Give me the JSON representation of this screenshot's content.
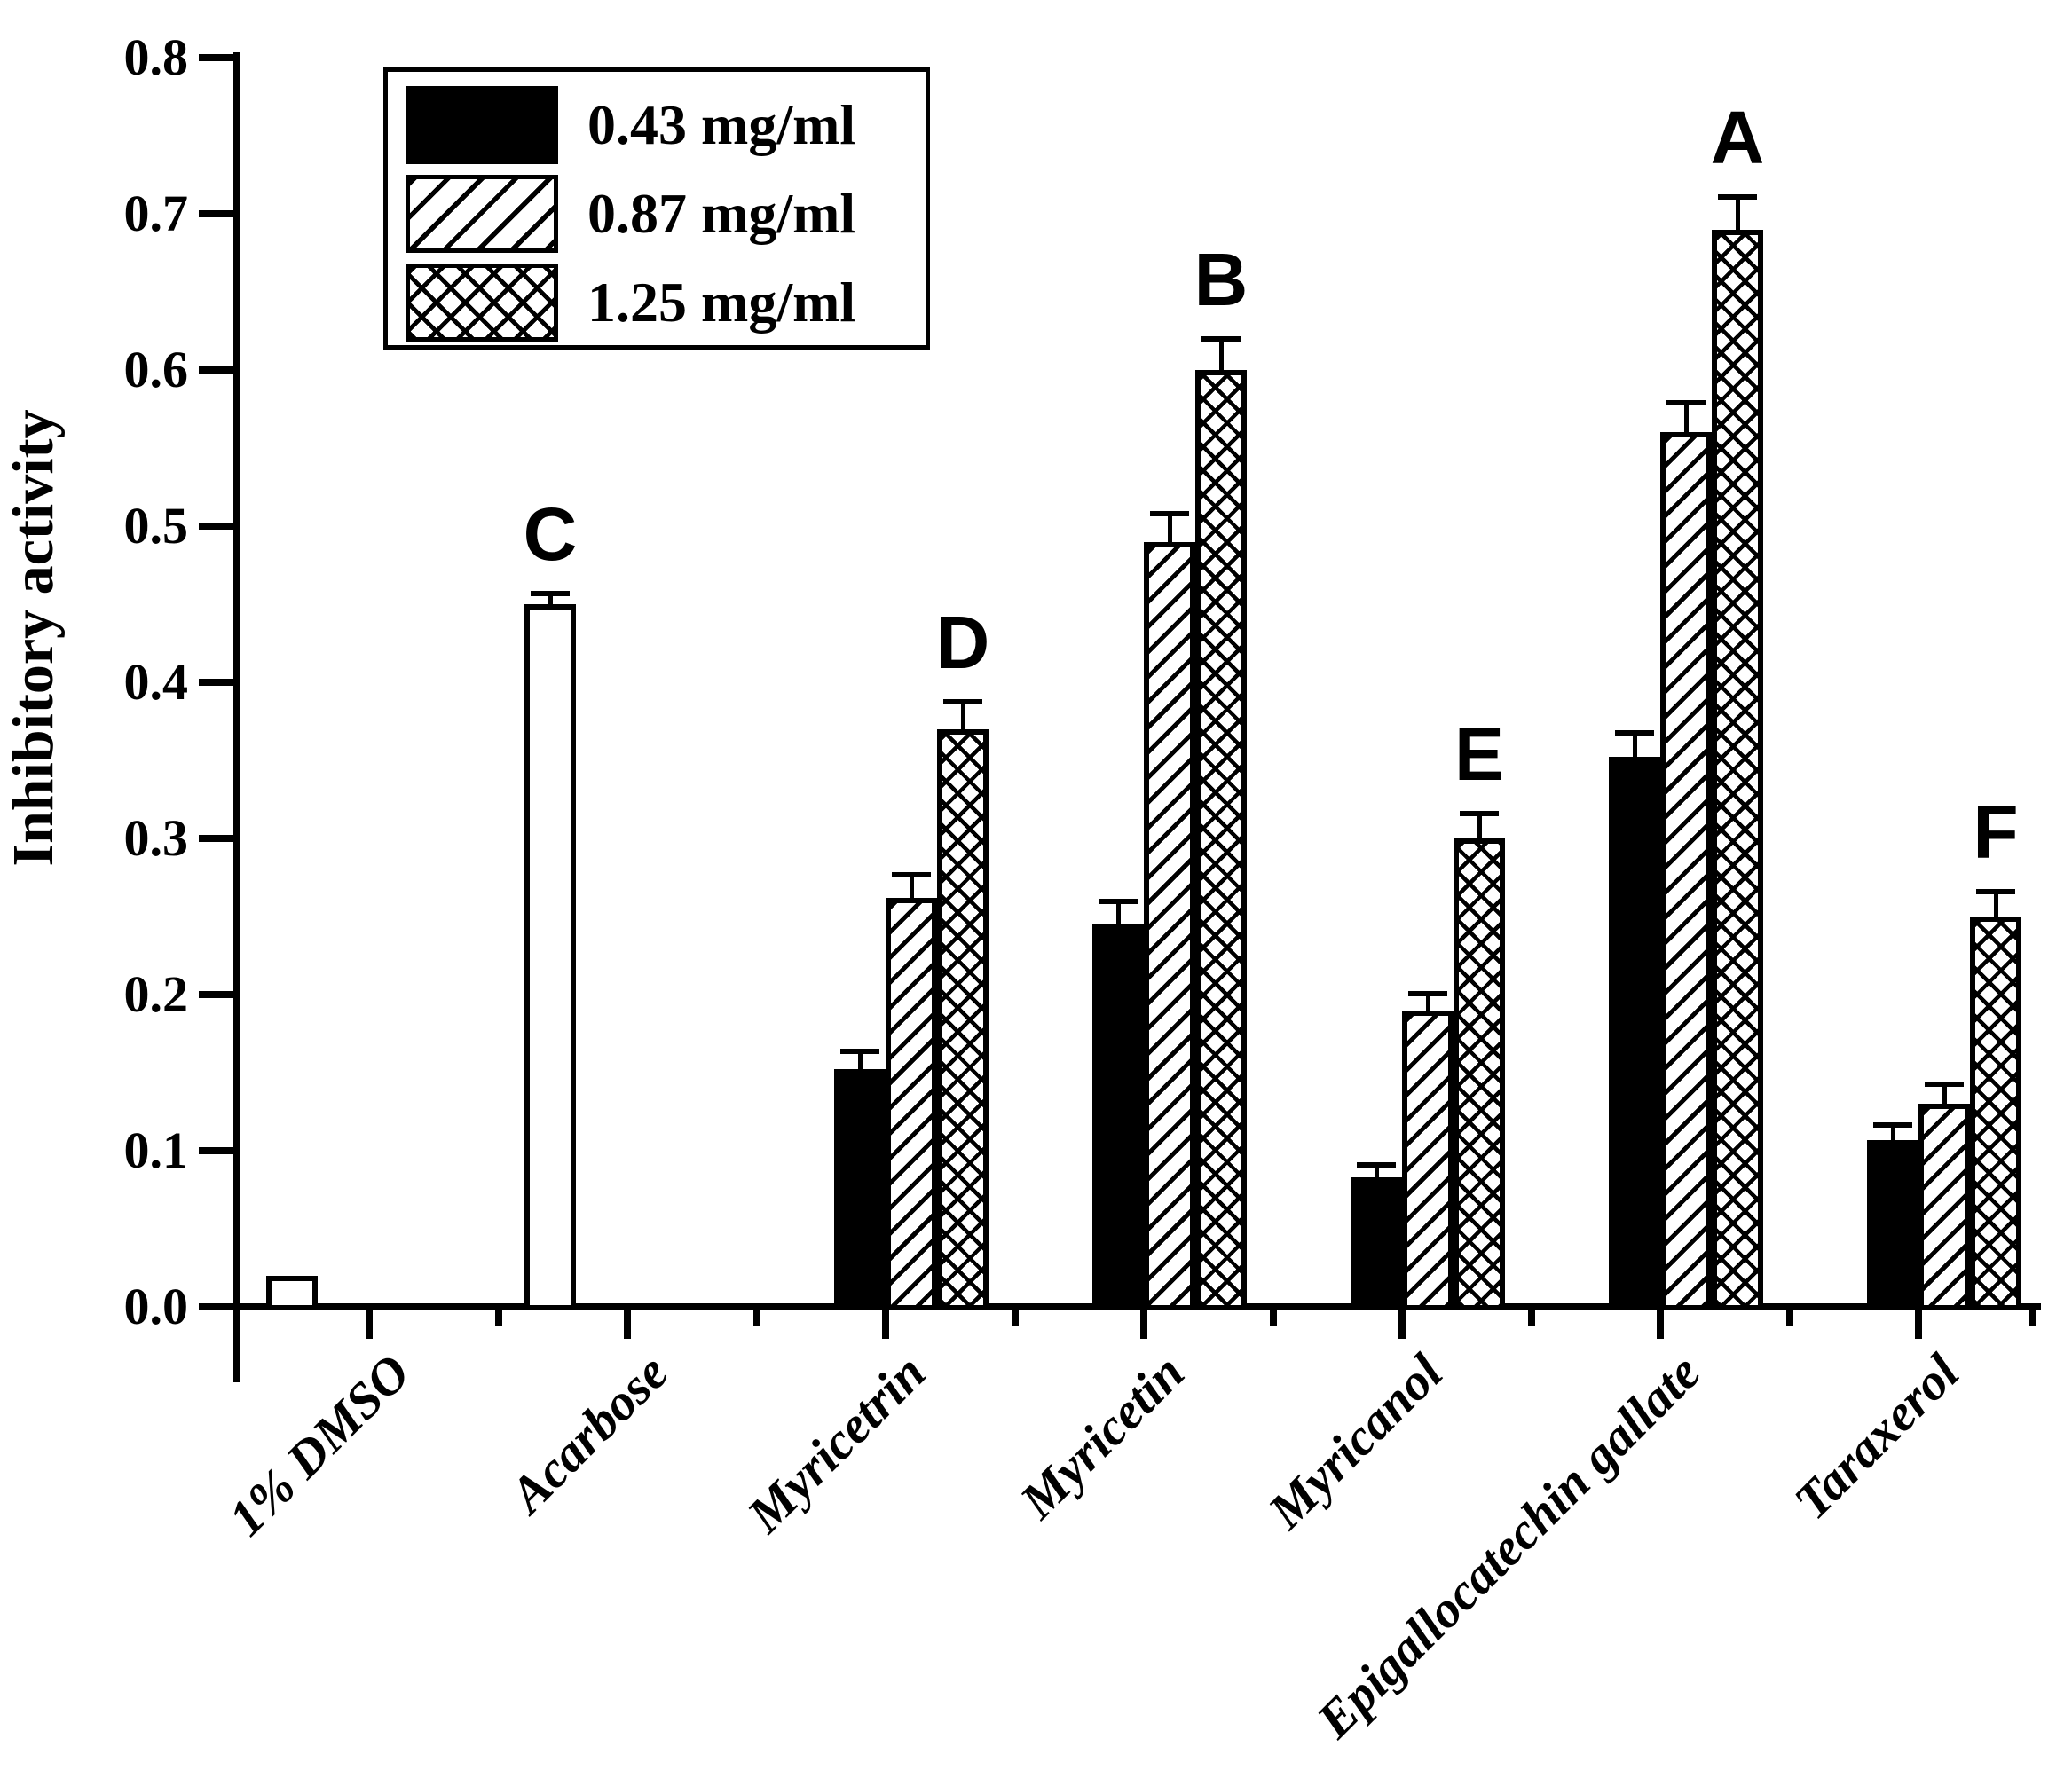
{
  "figure": {
    "background": "#ffffff",
    "ink": "#000000"
  },
  "legend": {
    "items": [
      {
        "label": "0.43 mg/ml",
        "pattern": "solid"
      },
      {
        "label": "0.87 mg/ml",
        "pattern": "hatch"
      },
      {
        "label": "1.25 mg/ml",
        "pattern": "cross"
      }
    ]
  },
  "chart_data": {
    "type": "bar",
    "title": "",
    "xlabel": "",
    "ylabel": "Inhibitory activity",
    "ylim": [
      0.0,
      0.8
    ],
    "grid": "off",
    "legend_position": "top-left-inside",
    "y_ticks": [
      "0.0",
      "0.1",
      "0.2",
      "0.3",
      "0.4",
      "0.5",
      "0.6",
      "0.7",
      "0.8"
    ],
    "series_legend": [
      "0.43 mg/ml",
      "0.87 mg/ml",
      "1.25 mg/ml"
    ],
    "categories": [
      {
        "label": "1% DMSO",
        "letter": "",
        "bars": [
          {
            "slot": 0,
            "pattern": "open",
            "series": "control",
            "value": 0.02,
            "err": 0
          }
        ]
      },
      {
        "label": "Acarbose",
        "letter": "C",
        "bars": [
          {
            "slot": 0,
            "pattern": "open",
            "series": "control",
            "value": 0.45,
            "err": 0.005
          }
        ]
      },
      {
        "label": "Myricetrin",
        "letter": "D",
        "bars": [
          {
            "slot": 1,
            "pattern": "solid",
            "series": "0.43 mg/ml",
            "value": 0.152,
            "err": 0.01
          },
          {
            "slot": 2,
            "pattern": "hatch",
            "series": "0.87 mg/ml",
            "value": 0.262,
            "err": 0.013
          },
          {
            "slot": 3,
            "pattern": "cross",
            "series": "1.25 mg/ml",
            "value": 0.37,
            "err": 0.016
          }
        ]
      },
      {
        "label": "Myricetin",
        "letter": "B",
        "bars": [
          {
            "slot": 1,
            "pattern": "solid",
            "series": "0.43 mg/ml",
            "value": 0.245,
            "err": 0.013
          },
          {
            "slot": 2,
            "pattern": "hatch",
            "series": "0.87 mg/ml",
            "value": 0.49,
            "err": 0.016
          },
          {
            "slot": 3,
            "pattern": "cross",
            "series": "1.25 mg/ml",
            "value": 0.6,
            "err": 0.018
          }
        ]
      },
      {
        "label": "Myricanol",
        "letter": "E",
        "bars": [
          {
            "slot": 1,
            "pattern": "solid",
            "series": "0.43 mg/ml",
            "value": 0.083,
            "err": 0.006
          },
          {
            "slot": 2,
            "pattern": "hatch",
            "series": "0.87 mg/ml",
            "value": 0.19,
            "err": 0.009
          },
          {
            "slot": 3,
            "pattern": "cross",
            "series": "1.25 mg/ml",
            "value": 0.3,
            "err": 0.014
          }
        ]
      },
      {
        "label": "Epigallocatechin gallate",
        "letter": "A",
        "bars": [
          {
            "slot": 1,
            "pattern": "solid",
            "series": "0.43 mg/ml",
            "value": 0.352,
            "err": 0.014
          },
          {
            "slot": 2,
            "pattern": "hatch",
            "series": "0.87 mg/ml",
            "value": 0.56,
            "err": 0.017
          },
          {
            "slot": 3,
            "pattern": "cross",
            "series": "1.25 mg/ml",
            "value": 0.69,
            "err": 0.019
          }
        ]
      },
      {
        "label": "Taraxerol",
        "letter": "F",
        "bars": [
          {
            "slot": 1,
            "pattern": "solid",
            "series": "0.43 mg/ml",
            "value": 0.107,
            "err": 0.008
          },
          {
            "slot": 2,
            "pattern": "hatch",
            "series": "0.87 mg/ml",
            "value": 0.13,
            "err": 0.011
          },
          {
            "slot": 3,
            "pattern": "cross",
            "series": "1.25 mg/ml",
            "value": 0.25,
            "err": 0.014
          }
        ]
      }
    ]
  }
}
